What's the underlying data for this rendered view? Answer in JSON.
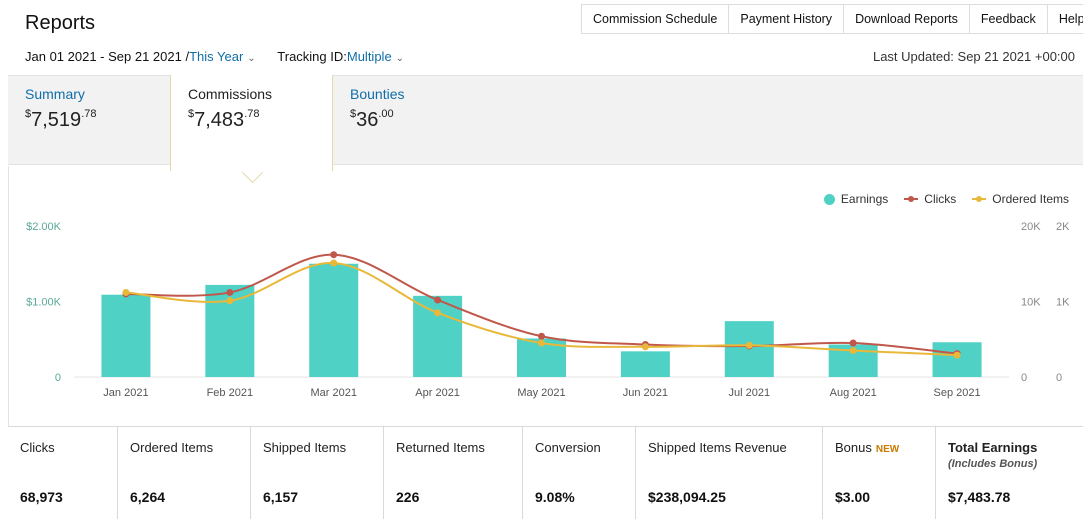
{
  "page": {
    "title": "Reports",
    "last_updated": "Last Updated: Sep 21 2021 +00:00"
  },
  "nav": [
    {
      "label": "Commission Schedule"
    },
    {
      "label": "Payment History"
    },
    {
      "label": "Download Reports"
    },
    {
      "label": "Feedback"
    },
    {
      "label": "Help"
    }
  ],
  "filters": {
    "date_range": "Jan 01 2021 - Sep 21 2021 / ",
    "date_preset": "This Year",
    "tracking_label": "Tracking ID: ",
    "tracking_value": "Multiple",
    "chevron_icon": "chevron-down-icon"
  },
  "tabs": [
    {
      "label": "Summary",
      "currency": "$",
      "whole": "7,519",
      "cents": ".78",
      "active": false
    },
    {
      "label": "Commissions",
      "currency": "$",
      "whole": "7,483",
      "cents": ".78",
      "active": true
    },
    {
      "label": "Bounties",
      "currency": "$",
      "whole": "36",
      "cents": ".00",
      "active": false
    }
  ],
  "legend": [
    {
      "label": "Earnings",
      "color": "#4fd1c5",
      "shape": "circle"
    },
    {
      "label": "Clicks",
      "color": "#c0574b",
      "shape": "line-dot"
    },
    {
      "label": "Ordered Items",
      "color": "#e8b83a",
      "shape": "line-dot"
    }
  ],
  "chart_data": {
    "type": "bar",
    "categories": [
      "Jan 2021",
      "Feb 2021",
      "Mar 2021",
      "Apr 2021",
      "May 2021",
      "Jun 2021",
      "Jul 2021",
      "Aug 2021",
      "Sep 2021"
    ],
    "left_axis": {
      "ticks": [
        "0",
        "$1.00K",
        "$2.00K"
      ],
      "range": [
        0,
        2000
      ]
    },
    "right_axis_1": {
      "ticks": [
        "0",
        "10K",
        "20K"
      ],
      "range": [
        0,
        20000
      ]
    },
    "right_axis_2": {
      "ticks": [
        "0",
        "1K",
        "2K"
      ],
      "range": [
        0,
        2000
      ]
    },
    "series": [
      {
        "name": "Earnings",
        "type": "bar",
        "axis": "left",
        "color": "#4fd1c5",
        "values": [
          1090,
          1220,
          1500,
          1075,
          510,
          340,
          740,
          430,
          460
        ]
      },
      {
        "name": "Clicks",
        "type": "line",
        "axis": "right_axis_1",
        "color": "#c0574b",
        "values": [
          11000,
          11200,
          16200,
          10200,
          5400,
          4300,
          4100,
          4500,
          3100
        ]
      },
      {
        "name": "Ordered Items",
        "type": "line",
        "axis": "right_axis_2",
        "color": "#e8b83a",
        "values": [
          1120,
          1010,
          1510,
          850,
          450,
          400,
          420,
          350,
          290
        ]
      }
    ],
    "grid": false,
    "legend_position": "top-right"
  },
  "stats": [
    {
      "label": "Clicks",
      "value": "68,973",
      "width": 110
    },
    {
      "label": "Ordered Items",
      "value": "6,264",
      "width": 133
    },
    {
      "label": "Shipped Items",
      "value": "6,157",
      "width": 133
    },
    {
      "label": "Returned Items",
      "value": "226",
      "width": 139
    },
    {
      "label": "Conversion",
      "value": "9.08%",
      "width": 113
    },
    {
      "label": "Shipped Items Revenue",
      "value": "$238,094.25",
      "width": 187
    },
    {
      "label": "Bonus",
      "badge": "NEW",
      "value": "$3.00",
      "width": 113
    },
    {
      "label": "Total Earnings",
      "sub": "(Includes Bonus)",
      "value": "$7,483.78",
      "width": 147,
      "bold": true
    }
  ]
}
